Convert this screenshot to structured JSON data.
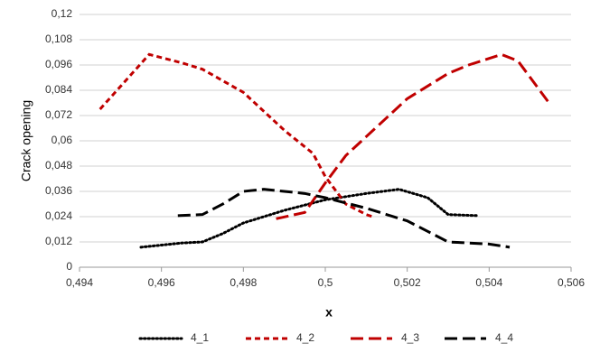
{
  "chart_data": {
    "type": "line",
    "y_label": "Crack opening",
    "x_label": "x",
    "xlim": [
      0.494,
      0.506
    ],
    "xticks": [
      {
        "value": 0.494,
        "label": "0,494"
      },
      {
        "value": 0.496,
        "label": "0,496"
      },
      {
        "value": 0.498,
        "label": "0,498"
      },
      {
        "value": 0.5,
        "label": "0,5"
      },
      {
        "value": 0.502,
        "label": "0,502"
      },
      {
        "value": 0.504,
        "label": "0,504"
      },
      {
        "value": 0.506,
        "label": "0,506"
      }
    ],
    "ylim": [
      0,
      0.12
    ],
    "yticks": [
      0,
      {
        "value": 0.012,
        "label": "0,012"
      },
      {
        "value": 0.024,
        "label": "0,024"
      },
      {
        "value": 0.036,
        "label": "0,036"
      },
      {
        "value": 0.048,
        "label": "0,048"
      },
      {
        "value": 0.06,
        "label": "0,06"
      },
      {
        "value": 0.072,
        "label": "0,072"
      },
      {
        "value": 0.084,
        "label": "0,084"
      },
      {
        "value": 0.096,
        "label": "0,096"
      },
      {
        "value": 0.108,
        "label": "0,108"
      },
      {
        "value": 0.12,
        "label": "0,12"
      }
    ],
    "grid": true,
    "legend": "bottom",
    "series": [
      {
        "name": "4_1",
        "color": "#000000",
        "dash": "dotted",
        "x": [
          0.4955,
          0.4965,
          0.497,
          0.4975,
          0.498,
          0.499,
          0.5,
          0.501,
          0.5018,
          0.5025,
          0.503,
          0.5037
        ],
        "values": [
          0.0095,
          0.0115,
          0.012,
          0.016,
          0.021,
          0.027,
          0.032,
          0.035,
          0.037,
          0.033,
          0.025,
          0.0245
        ]
      },
      {
        "name": "4_2",
        "color": "#c00000",
        "dash": "dashed",
        "x": [
          0.4945,
          0.4957,
          0.4965,
          0.497,
          0.498,
          0.499,
          0.4997,
          0.5,
          0.5005,
          0.501,
          0.50115
        ],
        "values": [
          0.075,
          0.101,
          0.097,
          0.094,
          0.083,
          0.065,
          0.054,
          0.043,
          0.03,
          0.025,
          0.024
        ]
      },
      {
        "name": "4_3",
        "color": "#c00000",
        "dash": "longdash",
        "x": [
          0.4988,
          0.4995,
          0.5,
          0.5005,
          0.501,
          0.502,
          0.503,
          0.5035,
          0.5043,
          0.5047,
          0.5055
        ],
        "values": [
          0.023,
          0.026,
          0.04,
          0.053,
          0.062,
          0.08,
          0.092,
          0.096,
          0.101,
          0.098,
          0.077
        ]
      },
      {
        "name": "4_4",
        "color": "#000000",
        "dash": "longdash",
        "x": [
          0.4964,
          0.497,
          0.4975,
          0.498,
          0.4985,
          0.499,
          0.4995,
          0.5,
          0.501,
          0.502,
          0.5025,
          0.503,
          0.5035,
          0.504,
          0.5045
        ],
        "values": [
          0.0245,
          0.025,
          0.03,
          0.036,
          0.037,
          0.036,
          0.035,
          0.033,
          0.028,
          0.022,
          0.017,
          0.012,
          0.0115,
          0.011,
          0.0095
        ]
      }
    ]
  }
}
